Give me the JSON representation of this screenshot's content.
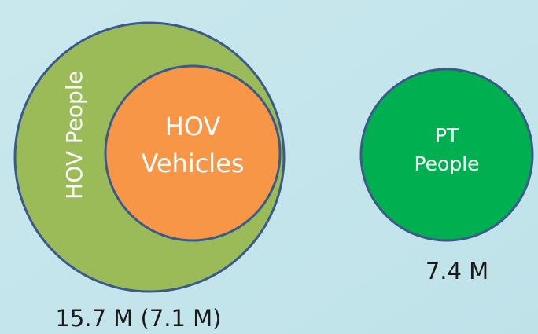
{
  "circles": {
    "hov_people": {
      "label": "HOV People"
    },
    "hov_vehicles": {
      "lines": [
        "HOV",
        "Vehicles"
      ]
    },
    "pt_people": {
      "lines": [
        "PT",
        "People"
      ]
    }
  },
  "captions": {
    "hov": "15.7 M (7.1 M)",
    "pt": "7.4 M"
  }
}
